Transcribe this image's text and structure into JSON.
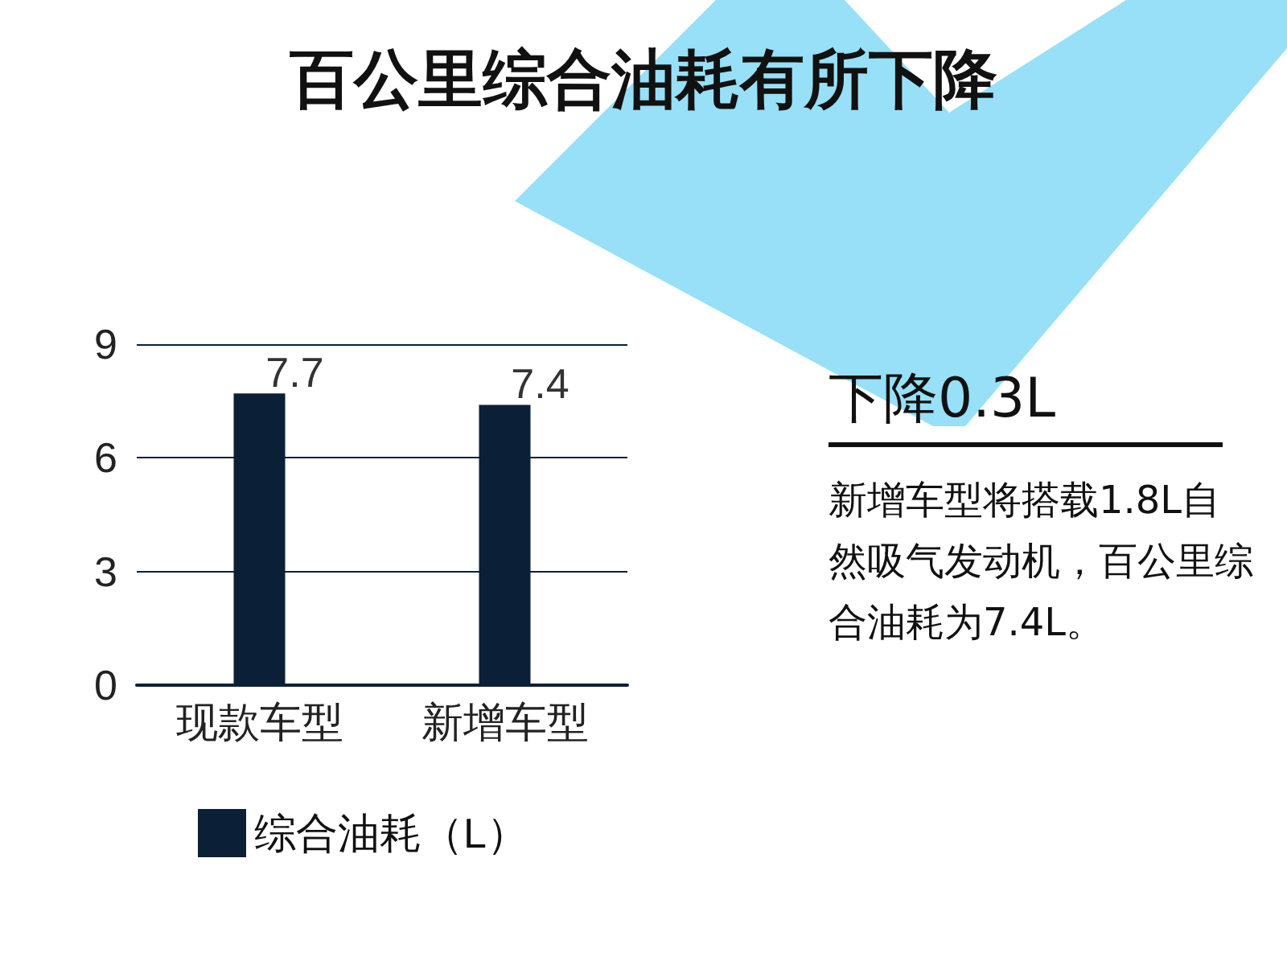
{
  "chart_data": {
    "type": "bar",
    "title": "百公里综合油耗有所下降",
    "categories": [
      "现款车型",
      "新增车型"
    ],
    "series": [
      {
        "name": "综合油耗（L）",
        "color": "#0b2037",
        "values": [
          7.7,
          7.4
        ]
      }
    ],
    "ylim": [
      0,
      9
    ],
    "yticks": [
      0,
      3,
      6,
      9
    ],
    "grid": "y",
    "legend": "bottom left",
    "data_labels": true,
    "annotations": [
      "下降0.3L",
      "新增车型将搭载1.8L自然吸气发动机，百公里综合油耗为7.4L。"
    ]
  }
}
